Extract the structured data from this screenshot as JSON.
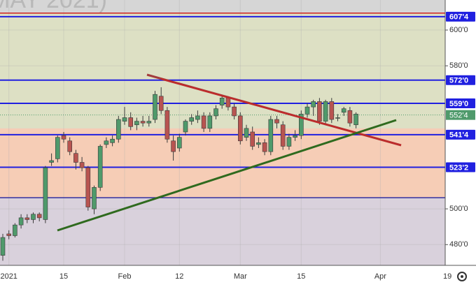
{
  "chart_data": {
    "type": "candlestick",
    "watermark": "MAY 2021)",
    "categories": [
      null,
      "2021",
      null,
      null,
      null,
      null,
      null,
      null,
      null,
      null,
      "15",
      null,
      null,
      null,
      null,
      null,
      null,
      null,
      null,
      null,
      "Feb",
      null,
      null,
      null,
      null,
      null,
      null,
      null,
      null,
      "12",
      null,
      null,
      null,
      null,
      null,
      null,
      null,
      null,
      null,
      "Mar",
      null,
      null,
      null,
      null,
      null,
      null,
      null,
      null,
      null,
      "15",
      null,
      null,
      null,
      null,
      null,
      null,
      null,
      null,
      null,
      null,
      null,
      null,
      "Apr",
      null,
      null,
      null,
      null,
      null,
      null,
      null,
      null,
      null,
      null,
      "19"
    ],
    "open": [
      474,
      486,
      485,
      491,
      495,
      494,
      497,
      494,
      526,
      528,
      541,
      538,
      531,
      526,
      523,
      500,
      512,
      536,
      537,
      539,
      549,
      551,
      547,
      549,
      548,
      550,
      563,
      555,
      538,
      534,
      543,
      549,
      550,
      552,
      545,
      552,
      558,
      562,
      557,
      552,
      540,
      543,
      536,
      537,
      532,
      550,
      547,
      535,
      540,
      541,
      553,
      557,
      560,
      549,
      560,
      551,
      554,
      555,
      547,
      null,
      null,
      null,
      null,
      null,
      null,
      null,
      null,
      null,
      null,
      null,
      null,
      null,
      null,
      null
    ],
    "high": [
      486,
      488,
      492,
      497,
      497,
      498,
      498,
      524,
      531,
      541,
      543,
      540,
      533,
      529,
      524,
      513,
      536,
      540,
      541,
      552,
      557,
      554,
      551,
      552,
      552,
      566,
      568,
      557,
      541,
      542,
      550,
      553,
      555,
      554,
      554,
      558,
      563,
      563,
      559,
      554,
      547,
      546,
      540,
      539,
      552,
      552,
      549,
      542,
      544,
      555,
      559,
      561,
      562,
      561,
      562,
      553,
      557,
      557,
      554,
      null,
      null,
      null,
      null,
      null,
      null,
      null,
      null,
      null,
      null,
      null,
      null,
      null,
      null,
      null
    ],
    "low": [
      471,
      483,
      484,
      489,
      492,
      492,
      493,
      492,
      524,
      526,
      537,
      530,
      522,
      521,
      499,
      497,
      510,
      534,
      535,
      537,
      547,
      544,
      544,
      546,
      546,
      548,
      553,
      537,
      527,
      532,
      541,
      547,
      548,
      543,
      543,
      550,
      556,
      555,
      550,
      536,
      538,
      533,
      534,
      530,
      530,
      545,
      533,
      533,
      538,
      539,
      551,
      552,
      547,
      547,
      548,
      549,
      552,
      546,
      545,
      null,
      null,
      null,
      null,
      null,
      null,
      null,
      null,
      null,
      null,
      null,
      null,
      null,
      null,
      null
    ],
    "close": [
      484,
      485,
      491,
      495,
      494,
      497,
      495,
      523,
      527,
      540,
      539,
      532,
      526,
      523,
      501,
      512,
      535,
      538,
      539,
      550,
      551,
      546,
      549,
      548,
      549,
      564,
      555,
      539,
      532,
      540,
      549,
      551,
      552,
      545,
      552,
      556,
      562,
      557,
      552,
      538,
      545,
      535,
      537,
      532,
      550,
      548,
      535,
      540,
      541,
      553,
      557,
      560,
      549,
      560,
      550,
      551,
      556,
      548,
      553,
      null,
      null,
      null,
      null,
      null,
      null,
      null,
      null,
      null,
      null,
      null,
      null,
      null,
      null,
      null
    ],
    "up_color": "#4f9a6b",
    "down_color": "#b85450",
    "ylim": [
      468.4,
      616.8
    ],
    "yticks": [
      {
        "value": 480,
        "label": "480'0"
      },
      {
        "value": 500,
        "label": "500'0"
      },
      {
        "value": 580,
        "label": "580'0"
      },
      {
        "value": 600,
        "label": "600'0"
      }
    ],
    "grid": true,
    "zones": [
      {
        "from": 545,
        "to": 609.5,
        "color": "#dde0c4"
      },
      {
        "from": 506.25,
        "to": 545,
        "color": "#f6cdb6"
      },
      {
        "from": 468.4,
        "to": 506.25,
        "color": "#d9d1dc"
      }
    ],
    "lines": [
      {
        "value": 609.5,
        "color": "#d02020"
      },
      {
        "value": 506.25,
        "color": "#3030a0"
      }
    ],
    "levels": [
      {
        "value": 607.5,
        "label": "607'4"
      },
      {
        "value": 572,
        "label": "572'0"
      },
      {
        "value": 559,
        "label": "559'0"
      },
      {
        "value": 541.5,
        "label": "541'4"
      },
      {
        "value": 523.25,
        "label": "523'2"
      }
    ],
    "level_color": "#2020e0",
    "last_price": {
      "value": 552.5,
      "label": "552'4"
    }
  }
}
